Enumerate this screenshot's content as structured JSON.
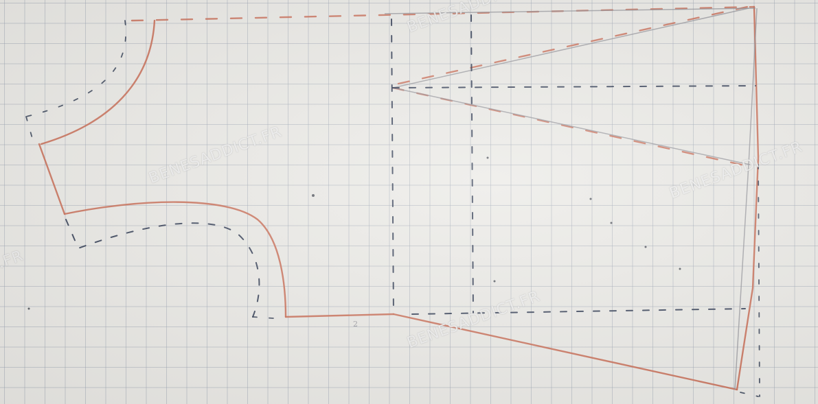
{
  "watermarks": [
    {
      "id": "wm-top",
      "text": "BENESADDICT.FR"
    },
    {
      "id": "wm-left",
      "text": "BENESADDICT.FR"
    },
    {
      "id": "wm-center",
      "text": "BENESADDICT.FR"
    },
    {
      "id": "wm-right",
      "text": "BENESADDICT.FR"
    },
    {
      "id": "wm-edge",
      "text": ".FR"
    }
  ],
  "marks": {
    "bottom_mark": "2"
  },
  "colors": {
    "paper": "#ebeae6",
    "grid": "#96a0af",
    "pattern_line": "#c96a52",
    "seam_allowance": "#1e2a44",
    "pencil": "#8f8f96"
  }
}
